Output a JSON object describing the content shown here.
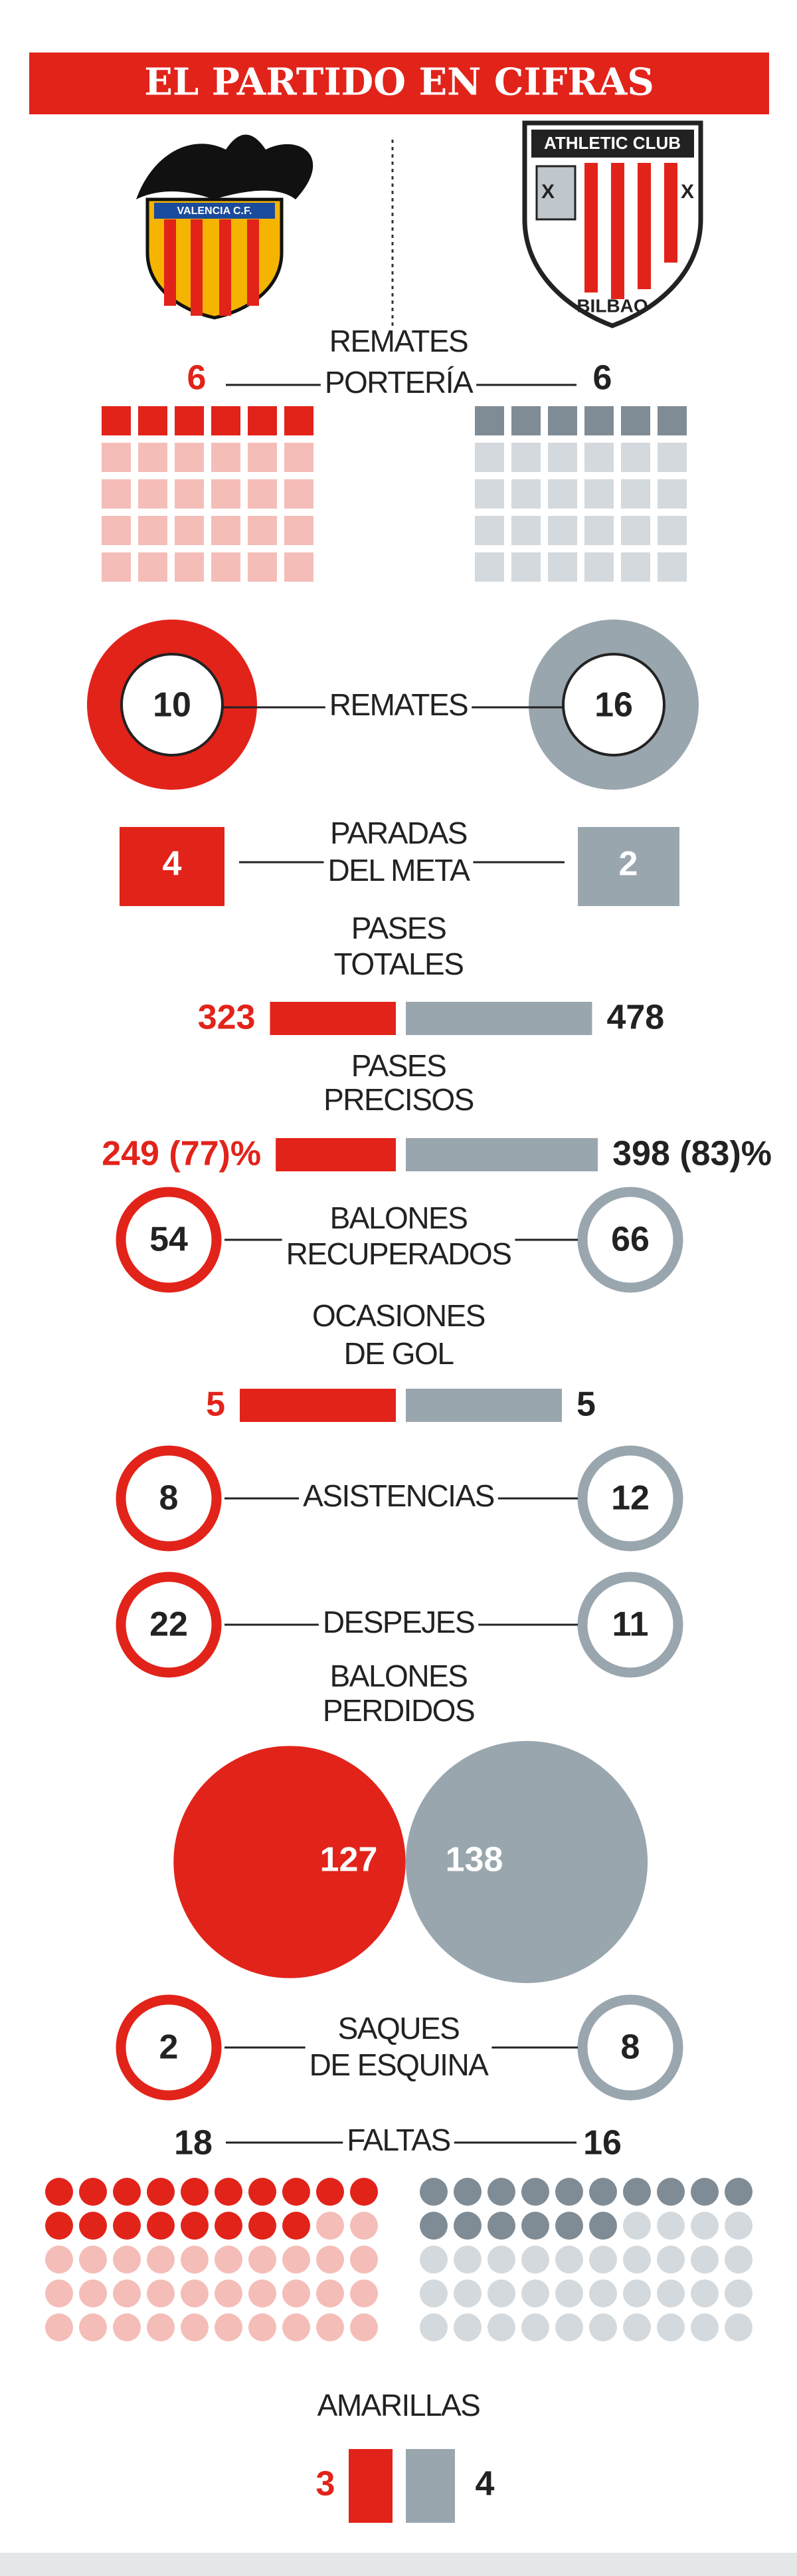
{
  "header": {
    "title": "EL PARTIDO EN CIFRAS"
  },
  "logos": {
    "home": "VALENCIA C.F.",
    "away_top": "ATHLETIC CLUB",
    "away_bottom": "BILBAO"
  },
  "stats": [
    {
      "label": [
        "REMATES",
        "PORTERÍA"
      ],
      "home": 6,
      "away": 6
    },
    {
      "label": [
        "REMATES"
      ],
      "home": 10,
      "away": 16
    },
    {
      "label": [
        "PARADAS",
        "DEL META"
      ],
      "home": 4,
      "away": 2
    },
    {
      "label": [
        "PASES",
        "TOTALES"
      ],
      "home": 323,
      "away": 478
    },
    {
      "label": [
        "PASES",
        "PRECISOS"
      ],
      "home": 249,
      "away": 398,
      "home_label": "249 (77)%",
      "away_label": "398 (83)%"
    },
    {
      "label": [
        "BALONES",
        "RECUPERADOS"
      ],
      "home": 54,
      "away": 66
    },
    {
      "label": [
        "OCASIONES",
        "DE GOL"
      ],
      "home": 5,
      "away": 5
    },
    {
      "label": [
        "ASISTENCIAS"
      ],
      "home": 8,
      "away": 12
    },
    {
      "label": [
        "DESPEJES"
      ],
      "home": 22,
      "away": 11
    },
    {
      "label": [
        "BALONES",
        "PERDIDOS"
      ],
      "home": 127,
      "away": 138
    },
    {
      "label": [
        "SAQUES",
        "DE ESQUINA"
      ],
      "home": 2,
      "away": 8
    },
    {
      "label": [
        "FALTAS"
      ],
      "home": 18,
      "away": 16
    },
    {
      "label": [
        "AMARILLAS"
      ],
      "home": 3,
      "away": 4
    }
  ]
}
